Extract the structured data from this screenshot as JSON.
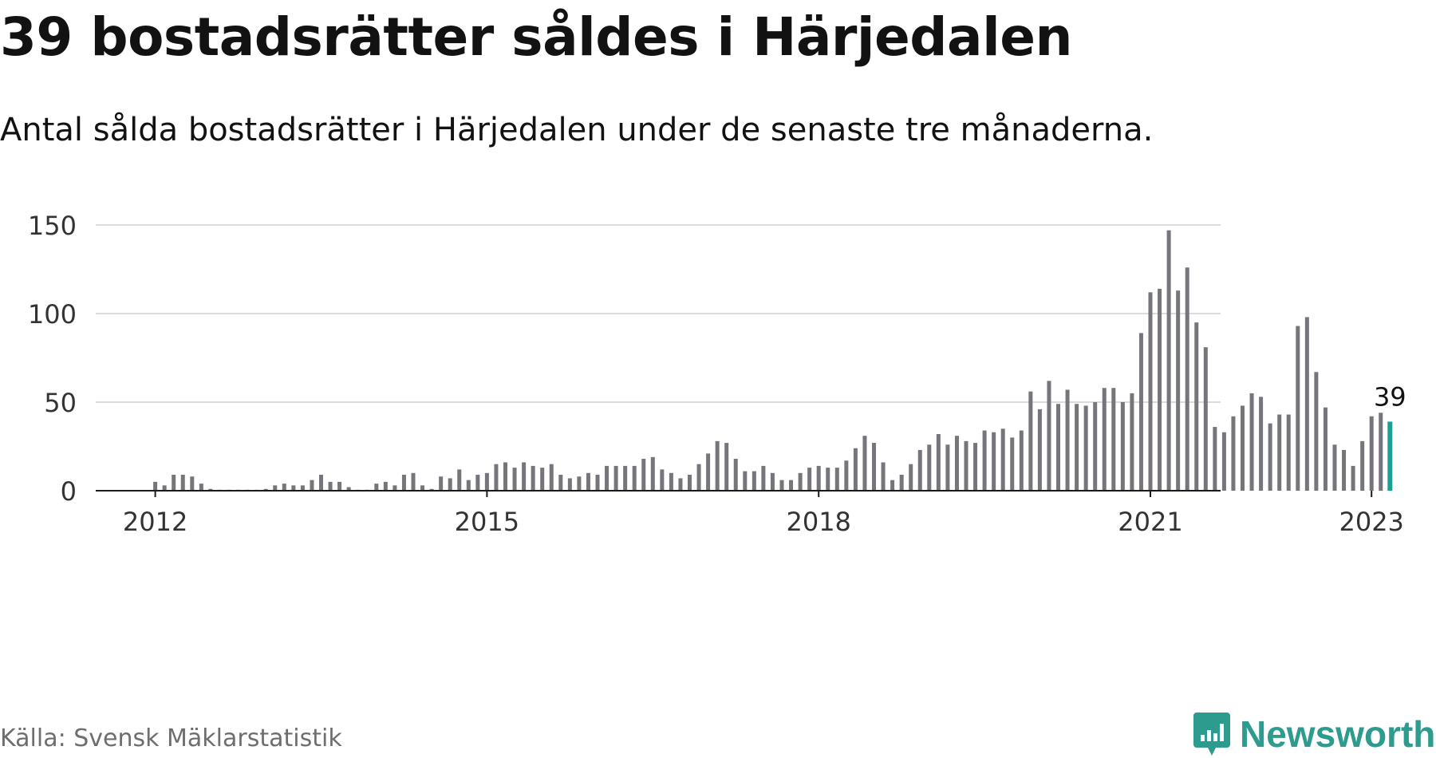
{
  "title": "39 bostadsrätter såldes i Härjedalen",
  "subtitle": "Antal sålda bostadsrätter i Härjedalen under de senaste tre månaderna.",
  "source": "Källa: Svensk Mäklarstatistik",
  "brand": {
    "name": "Newsworthy",
    "icon": "newsworthy-logo-icon",
    "color": "#2d9b8e"
  },
  "colors": {
    "bar": "#75757b",
    "highlight": "#1aa195",
    "grid": "#dcdcdc",
    "axis": "#1a1a1a"
  },
  "chart_data": {
    "type": "bar",
    "x_start": "2011-01",
    "x_ticks": [
      "2012",
      "2015",
      "2018",
      "2021",
      "2023"
    ],
    "y_ticks": [
      0,
      50,
      100,
      150
    ],
    "ylim": [
      0,
      150
    ],
    "grid": true,
    "highlight_label": "39",
    "values": [
      null,
      null,
      null,
      null,
      null,
      null,
      null,
      null,
      null,
      null,
      null,
      null,
      5,
      3,
      9,
      9,
      8,
      4,
      1,
      0,
      0,
      0,
      0,
      0,
      1,
      3,
      4,
      3,
      3,
      6,
      9,
      5,
      5,
      2,
      0,
      0,
      4,
      5,
      3,
      9,
      10,
      3,
      1,
      8,
      7,
      12,
      6,
      9,
      10,
      15,
      16,
      13,
      16,
      14,
      13,
      15,
      9,
      7,
      8,
      10,
      9,
      14,
      14,
      14,
      14,
      18,
      19,
      12,
      10,
      7,
      9,
      15,
      21,
      28,
      27,
      18,
      11,
      11,
      14,
      10,
      6,
      6,
      10,
      13,
      14,
      13,
      13,
      17,
      24,
      31,
      27,
      16,
      6,
      9,
      15,
      23,
      26,
      32,
      26,
      31,
      28,
      27,
      34,
      33,
      35,
      30,
      34,
      56,
      46,
      62,
      49,
      57,
      49,
      48,
      50,
      58,
      58,
      50,
      55,
      89,
      112,
      114,
      147,
      113,
      126,
      95,
      81,
      36,
      33,
      42,
      48,
      55,
      53,
      38,
      43,
      43,
      93,
      98,
      67,
      47,
      26,
      23,
      14,
      28,
      42,
      44,
      39
    ]
  }
}
